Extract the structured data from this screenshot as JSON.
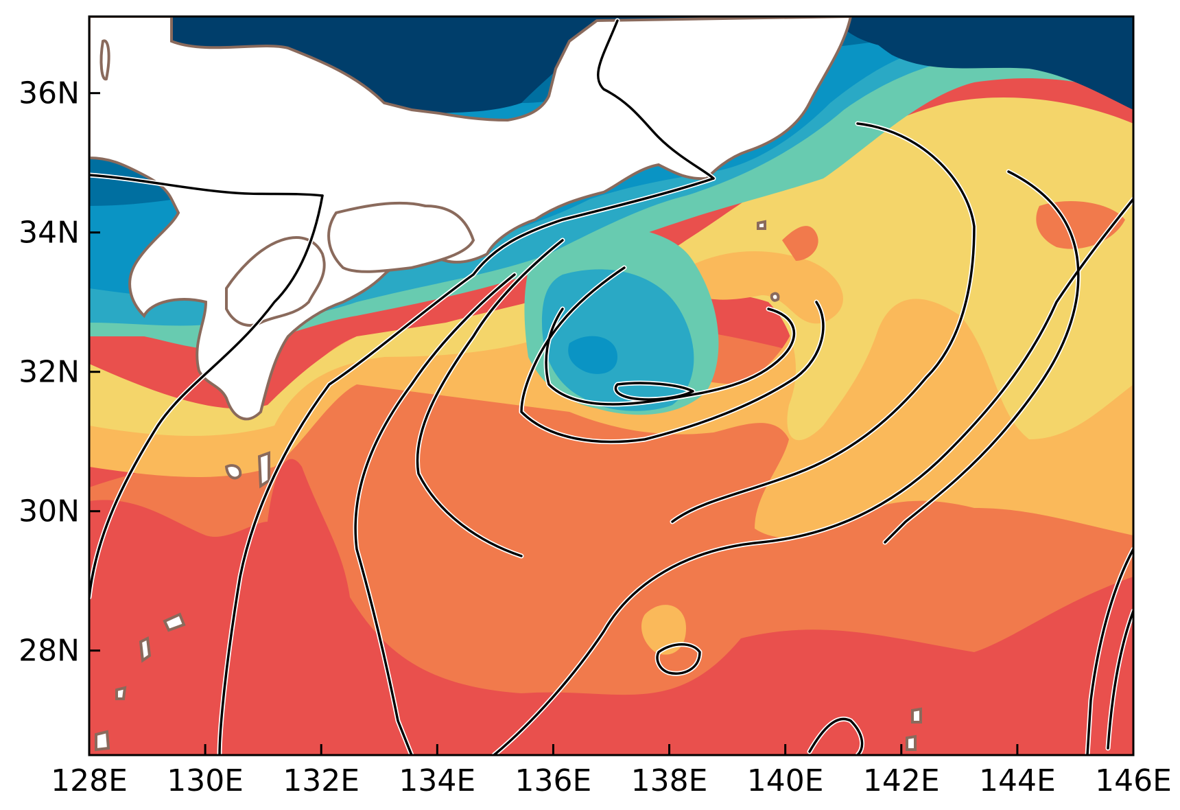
{
  "map": {
    "projection": "equirectangular",
    "extent": {
      "lon": [
        128,
        146
      ],
      "lat": [
        26.5,
        37.1
      ]
    },
    "x_ticks": [
      {
        "lon": 128,
        "label": "128E"
      },
      {
        "lon": 130,
        "label": "130E"
      },
      {
        "lon": 132,
        "label": "132E"
      },
      {
        "lon": 134,
        "label": "134E"
      },
      {
        "lon": 136,
        "label": "136E"
      },
      {
        "lon": 138,
        "label": "138E"
      },
      {
        "lon": 140,
        "label": "140E"
      },
      {
        "lon": 142,
        "label": "142E"
      },
      {
        "lon": 144,
        "label": "144E"
      },
      {
        "lon": 146,
        "label": "146E"
      }
    ],
    "y_ticks": [
      {
        "lat": 36,
        "label": "36N"
      },
      {
        "lat": 34,
        "label": "34N"
      },
      {
        "lat": 32,
        "label": "32N"
      },
      {
        "lat": 30,
        "label": "30N"
      },
      {
        "lat": 28,
        "label": "28N"
      }
    ],
    "shading_colors": {
      "level_1": "#003e6b",
      "level_2": "#006fa0",
      "level_3": "#0a94c4",
      "level_4": "#2aa9c5",
      "level_5": "#68cbb0",
      "level_6": "#f4d56a",
      "level_7": "#fab95a",
      "level_8": "#f17a4c",
      "level_9": "#e9504d"
    },
    "land_color": "#ffffff",
    "coastline_color": "#8a6a5c",
    "contour_color": "#000000"
  }
}
